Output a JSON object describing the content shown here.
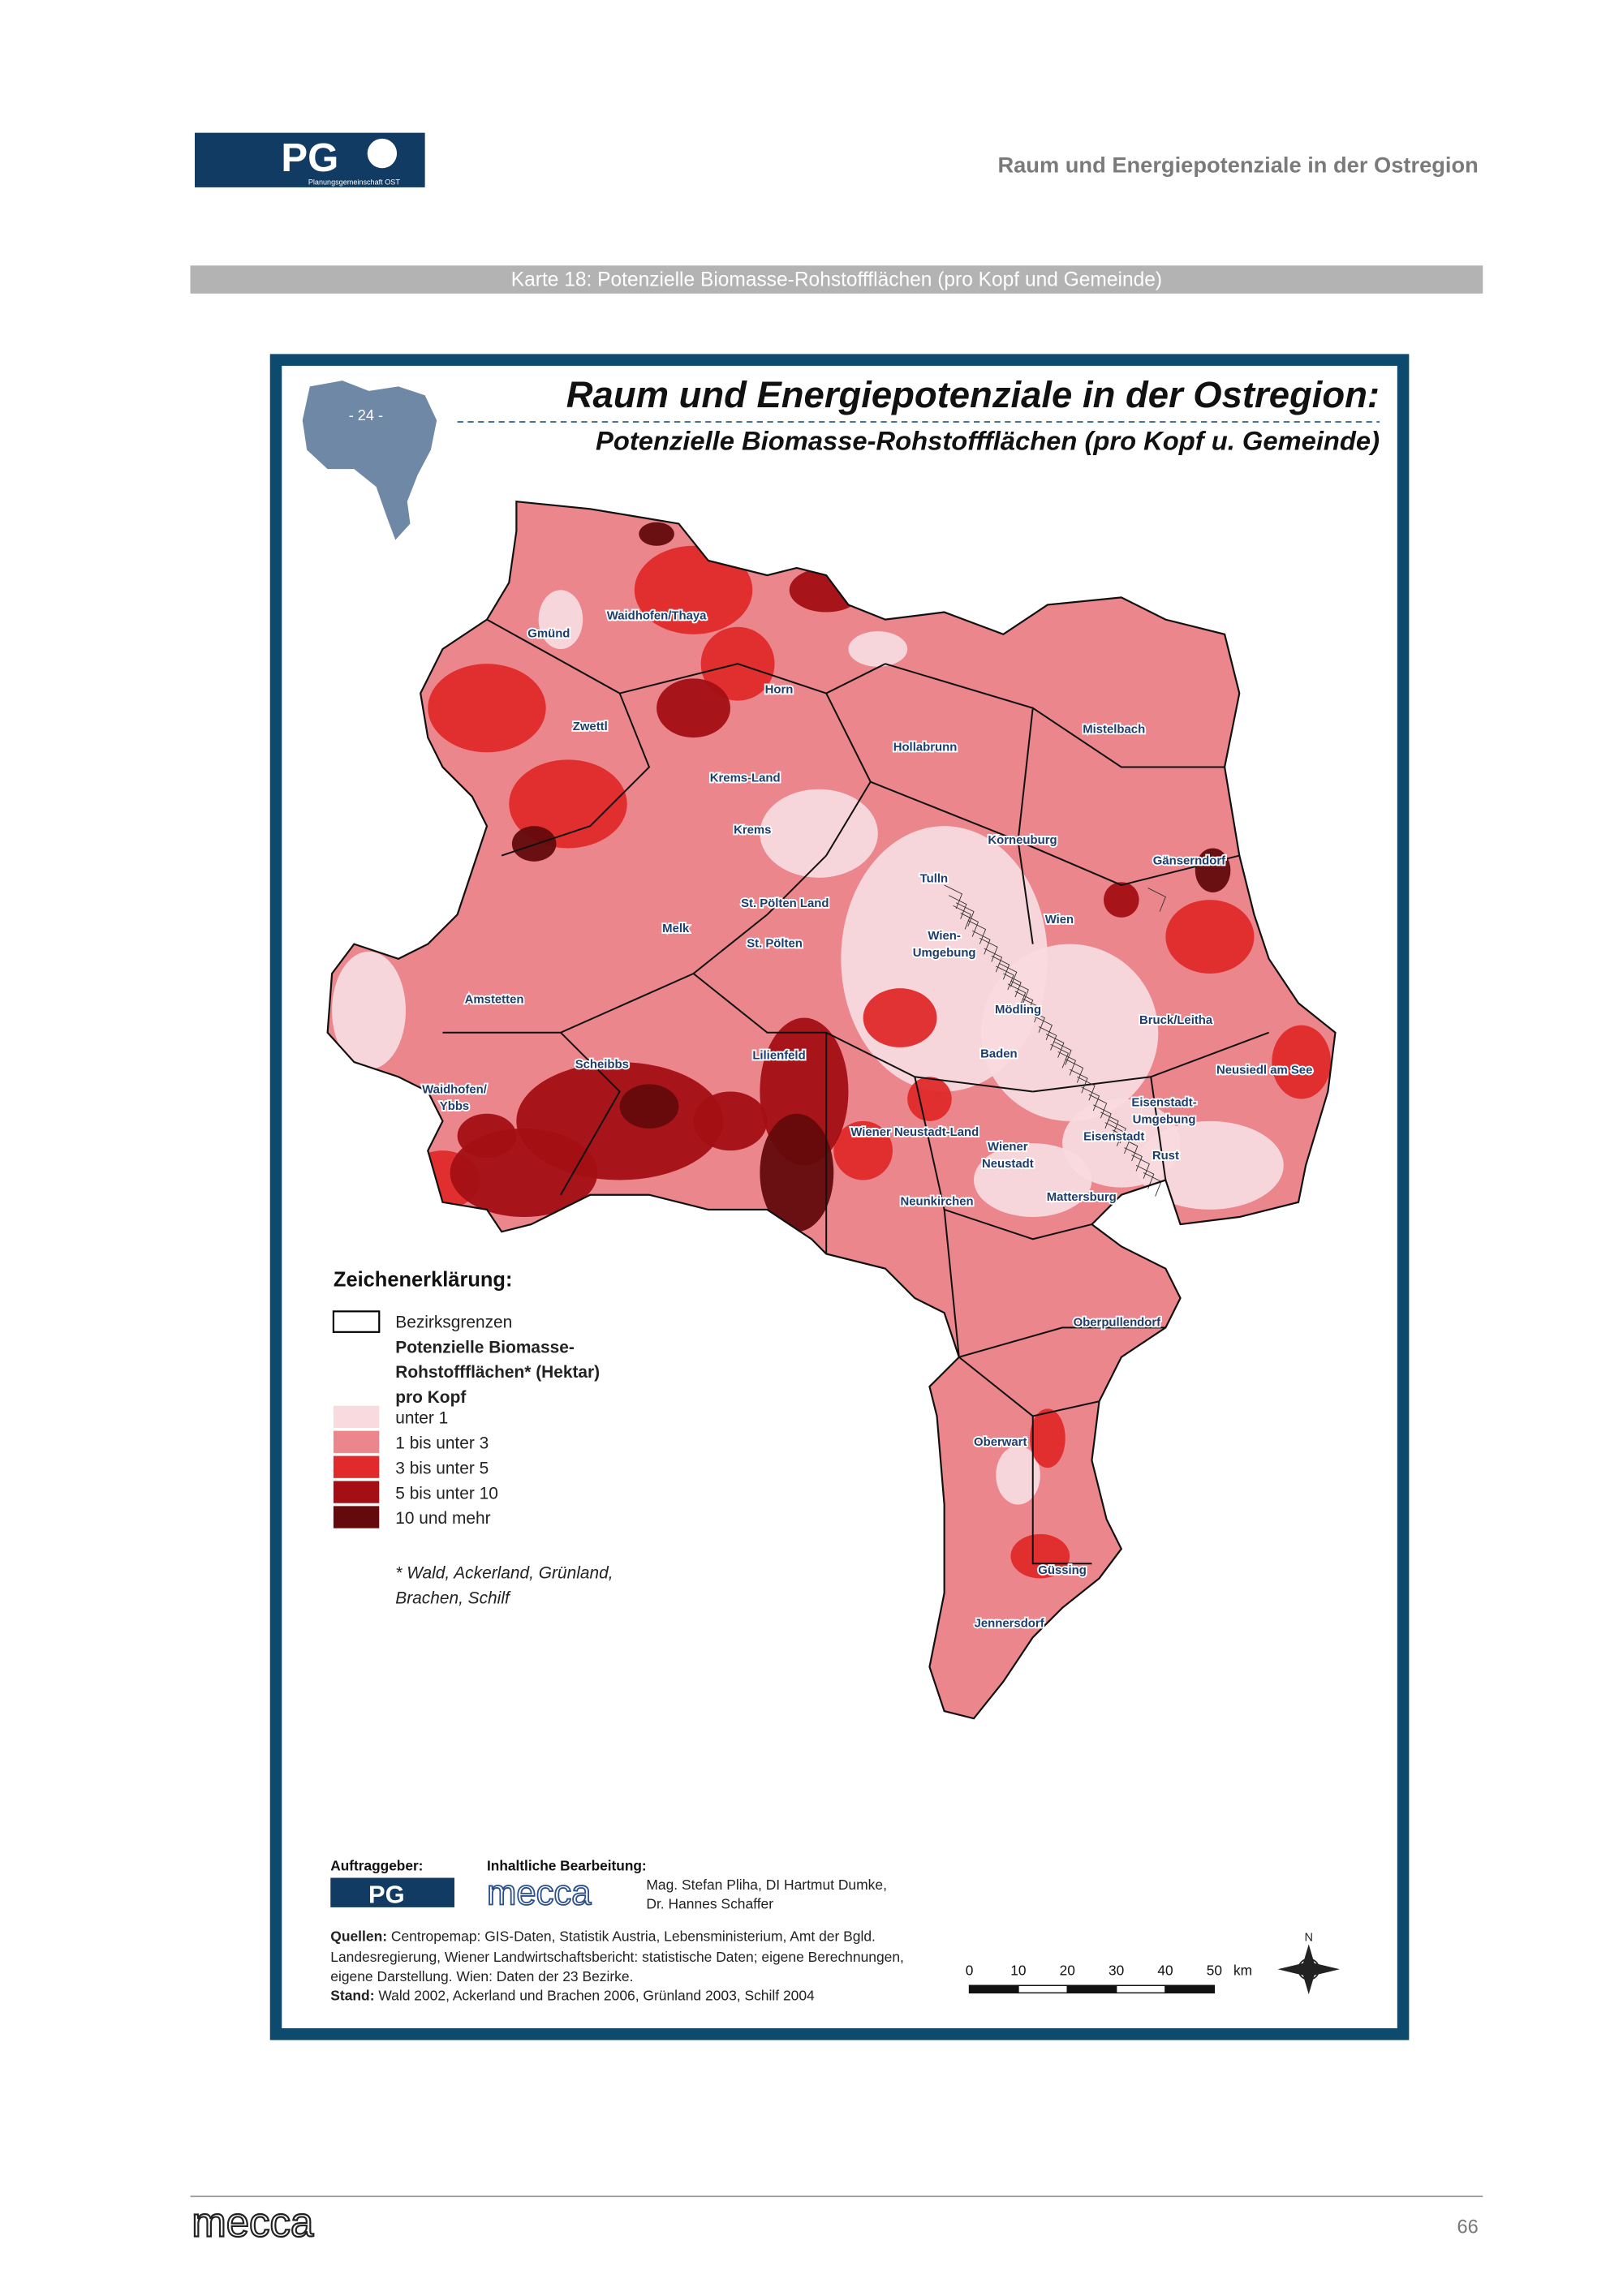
{
  "header": {
    "logo": "PG",
    "logo_sub": "Planungsgemeinschaft OST",
    "title": "Raum und Energiepotenziale in der Ostregion"
  },
  "caption": "Karte 18: Potenzielle Biomasse-Rohstoffflächen (pro Kopf und Gemeinde)",
  "map": {
    "title": "Raum und Energiepotenziale in der Ostregion:",
    "subtitle": "Potenzielle Biomasse-Rohstoffflächen (pro Kopf u. Gemeinde)",
    "inset_label": "- 24 -",
    "districts": [
      {
        "lines": [
          "Waidhofen/Thaya"
        ]
      },
      {
        "lines": [
          "Gmünd"
        ]
      },
      {
        "lines": [
          "Horn"
        ]
      },
      {
        "lines": [
          "Zwettl"
        ]
      },
      {
        "lines": [
          "Mistelbach"
        ]
      },
      {
        "lines": [
          "Hollabrunn"
        ]
      },
      {
        "lines": [
          "Krems-Land"
        ]
      },
      {
        "lines": [
          "Krems"
        ]
      },
      {
        "lines": [
          "Korneuburg"
        ]
      },
      {
        "lines": [
          "Gänserndorf"
        ]
      },
      {
        "lines": [
          "Tulln"
        ]
      },
      {
        "lines": [
          "St. Pölten Land"
        ]
      },
      {
        "lines": [
          "Wien"
        ]
      },
      {
        "lines": [
          "St. Pölten"
        ]
      },
      {
        "lines": [
          "Melk"
        ]
      },
      {
        "lines": [
          "Wien-",
          "Umgebung"
        ]
      },
      {
        "lines": [
          "Amstetten"
        ]
      },
      {
        "lines": [
          "Mödling"
        ]
      },
      {
        "lines": [
          "Bruck/Leitha"
        ]
      },
      {
        "lines": [
          "Scheibbs"
        ]
      },
      {
        "lines": [
          "Lilienfeld"
        ]
      },
      {
        "lines": [
          "Baden"
        ]
      },
      {
        "lines": [
          "Neusiedl am See"
        ]
      },
      {
        "lines": [
          "Waidhofen/",
          "Ybbs"
        ]
      },
      {
        "lines": [
          "Eisenstadt-",
          "Umgebung"
        ]
      },
      {
        "lines": [
          "Eisenstadt"
        ]
      },
      {
        "lines": [
          "Wiener Neustadt-Land"
        ]
      },
      {
        "lines": [
          "Wiener",
          "Neustadt"
        ]
      },
      {
        "lines": [
          "Rust"
        ]
      },
      {
        "lines": [
          "Neunkirchen"
        ]
      },
      {
        "lines": [
          "Mattersburg"
        ]
      },
      {
        "lines": [
          "Oberpullendorf"
        ]
      },
      {
        "lines": [
          "Oberwart"
        ]
      },
      {
        "lines": [
          "Güssing"
        ]
      },
      {
        "lines": [
          "Jennersdorf"
        ]
      }
    ]
  },
  "legend": {
    "heading": "Zeichenerklärung:",
    "boundary": "Bezirksgrenzen",
    "class_heading": [
      "Potenzielle Biomasse-",
      "Rohstoffflächen* (Hektar)",
      "pro Kopf"
    ],
    "classes": [
      {
        "label": "unter 1",
        "color": "#f8dadf"
      },
      {
        "label": "1 bis unter 3",
        "color": "#ea868c"
      },
      {
        "label": "3 bis unter 5",
        "color": "#e02a2b"
      },
      {
        "label": "5 bis unter 10",
        "color": "#a30f14"
      },
      {
        "label": "10 und mehr",
        "color": "#640a0c"
      }
    ],
    "footnote": [
      "* Wald, Ackerland, Grünland,",
      "Brachen, Schilf"
    ]
  },
  "credits": {
    "client_label": "Auftraggeber:",
    "client_logo": "PG",
    "editor_label": "Inhaltliche Bearbeitung:",
    "editor_logo": "mecca",
    "editor_names": [
      "Mag. Stefan Pliha, DI Hartmut Dumke,",
      "Dr. Hannes Schaffer"
    ],
    "sources_label": "Quellen:",
    "sources": [
      " Centropemap: GIS-Daten, Statistik Austria, Lebensministerium, Amt der Bgld.",
      "Landesregierung, Wiener Landwirtschaftsbericht: statistische Daten; eigene Berechnungen,",
      "eigene Darstellung. Wien: Daten der 23 Bezirke."
    ],
    "status_label": "Stand:",
    "status": " Wald 2002, Ackerland und Brachen 2006, Grünland 2003, Schilf 2004"
  },
  "scale": {
    "ticks": [
      "0",
      "10",
      "20",
      "30",
      "40",
      "50"
    ],
    "unit": "km",
    "north": "N"
  },
  "footer": {
    "logo": "mecca",
    "page": "66"
  }
}
